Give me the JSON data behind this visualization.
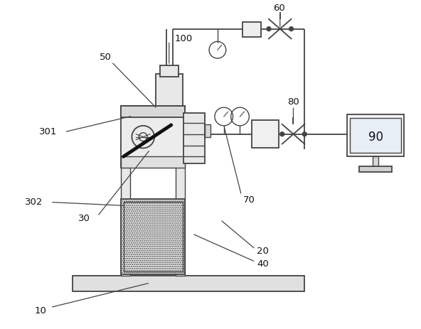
{
  "bg_color": "#ffffff",
  "line_color": "#444444",
  "label_color": "#111111",
  "figsize": [
    5.92,
    4.63
  ],
  "dpi": 100
}
